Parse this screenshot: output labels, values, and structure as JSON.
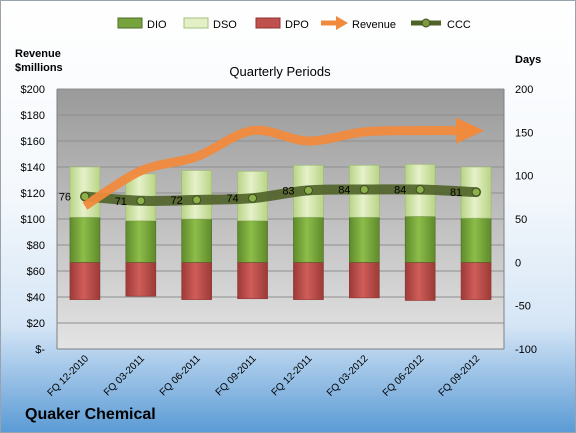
{
  "chart_data": {
    "type": "bar",
    "title": "Quarterly Periods",
    "company": "Quaker Chemical",
    "left_axis_label": [
      "Revenue",
      "$millions"
    ],
    "right_axis_label": "Days",
    "categories": [
      "FQ 12-2010",
      "FQ 03-2011",
      "FQ 06-2011",
      "FQ 09-2011",
      "FQ 12-2011",
      "FQ 03-2012",
      "FQ 06-2012",
      "FQ 09-2012"
    ],
    "left_ticks": [
      "$200",
      "$180",
      "$160",
      "$140",
      "$120",
      "$100",
      "$80",
      "$60",
      "$40",
      "$20",
      "$-"
    ],
    "right_ticks": [
      "200",
      "150",
      "100",
      "50",
      "0",
      "-50",
      "-100"
    ],
    "left_ylim": [
      0,
      200
    ],
    "right_ylim": [
      -100,
      200
    ],
    "series": [
      {
        "name": "DIO",
        "values": [
          52,
          48,
          50,
          48,
          52,
          52,
          53,
          51
        ],
        "color": "#77a33d"
      },
      {
        "name": "DSO",
        "values": [
          58,
          54,
          56,
          57,
          60,
          60,
          60,
          59
        ],
        "color": "#cfe39f"
      },
      {
        "name": "DPO",
        "values": [
          -43,
          -39,
          -43,
          -42,
          -43,
          -41,
          -44,
          -43
        ],
        "color": "#c0504d"
      },
      {
        "name": "Revenue",
        "values": [
          110,
          137,
          148,
          168,
          160,
          167,
          168,
          168
        ],
        "color": "#f08a3c"
      },
      {
        "name": "CCC",
        "values": [
          76,
          71,
          72,
          74,
          83,
          84,
          84,
          81
        ],
        "color": "#4f6228"
      }
    ],
    "ccc_labels": [
      "76",
      "71",
      "72",
      "74",
      "83",
      "84",
      "84",
      "81"
    ],
    "legend_position": "top"
  }
}
